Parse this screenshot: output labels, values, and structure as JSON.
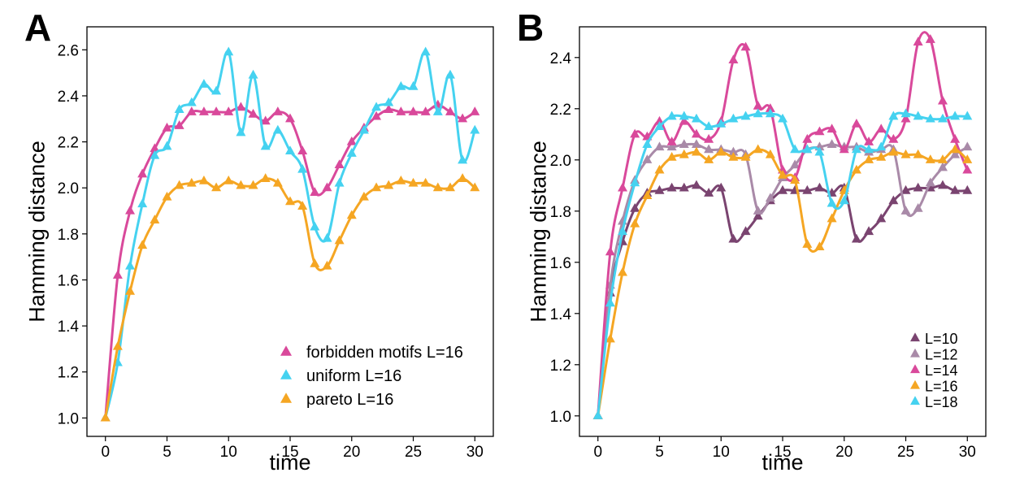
{
  "chart_data": [
    {
      "panel": "A",
      "type": "line",
      "title": "",
      "xlabel": "time",
      "ylabel": "Hamming distance",
      "xlim": [
        -1.5,
        31.5
      ],
      "ylim": [
        0.92,
        2.7
      ],
      "xticks": [
        0,
        5,
        10,
        15,
        20,
        25,
        30
      ],
      "yticks": [
        1.0,
        1.2,
        1.4,
        1.6,
        1.8,
        2.0,
        2.2,
        2.4,
        2.6
      ],
      "ytick_labels": [
        "1.0",
        "1.2",
        "1.4",
        "1.6",
        "1.8",
        "2.0",
        "2.2",
        "2.4",
        "2.6"
      ],
      "legend_position": "bottom-right",
      "series": [
        {
          "name": "forbidden motifs L=16",
          "color": "#d9499b",
          "x": [
            0,
            1,
            2,
            3,
            4,
            5,
            6,
            7,
            8,
            9,
            10,
            11,
            12,
            13,
            14,
            15,
            16,
            17,
            18,
            19,
            20,
            21,
            22,
            23,
            24,
            25,
            26,
            27,
            28,
            29,
            30
          ],
          "y": [
            1.0,
            1.62,
            1.9,
            2.06,
            2.17,
            2.26,
            2.27,
            2.33,
            2.33,
            2.33,
            2.33,
            2.35,
            2.32,
            2.29,
            2.33,
            2.3,
            2.16,
            1.98,
            2.0,
            2.1,
            2.2,
            2.26,
            2.31,
            2.34,
            2.33,
            2.33,
            2.33,
            2.36,
            2.33,
            2.3,
            2.33
          ]
        },
        {
          "name": "uniform L=16",
          "color": "#45d2f0",
          "x": [
            0,
            1,
            2,
            3,
            4,
            5,
            6,
            7,
            8,
            9,
            10,
            11,
            12,
            13,
            14,
            15,
            16,
            17,
            18,
            19,
            20,
            21,
            22,
            23,
            24,
            25,
            26,
            27,
            28,
            29,
            30
          ],
          "y": [
            1.0,
            1.24,
            1.66,
            1.93,
            2.14,
            2.18,
            2.34,
            2.37,
            2.45,
            2.42,
            2.59,
            2.24,
            2.49,
            2.18,
            2.25,
            2.16,
            2.08,
            1.83,
            1.78,
            2.02,
            2.15,
            2.25,
            2.35,
            2.37,
            2.44,
            2.44,
            2.59,
            2.33,
            2.49,
            2.12,
            2.25
          ]
        },
        {
          "name": "pareto L=16",
          "color": "#f5a623",
          "x": [
            0,
            1,
            2,
            3,
            4,
            5,
            6,
            7,
            8,
            9,
            10,
            11,
            12,
            13,
            14,
            15,
            16,
            17,
            18,
            19,
            20,
            21,
            22,
            23,
            24,
            25,
            26,
            27,
            28,
            29,
            30
          ],
          "y": [
            1.0,
            1.31,
            1.55,
            1.75,
            1.86,
            1.96,
            2.01,
            2.02,
            2.03,
            2.0,
            2.03,
            2.01,
            2.01,
            2.04,
            2.02,
            1.94,
            1.92,
            1.67,
            1.66,
            1.77,
            1.88,
            1.96,
            2.0,
            2.01,
            2.03,
            2.02,
            2.02,
            2.0,
            2.0,
            2.04,
            2.0
          ]
        }
      ]
    },
    {
      "panel": "B",
      "type": "line",
      "title": "",
      "xlabel": "time",
      "ylabel": "Hamming distance",
      "xlim": [
        -1.5,
        31.5
      ],
      "ylim": [
        0.92,
        2.52
      ],
      "xticks": [
        0,
        5,
        10,
        15,
        20,
        25,
        30
      ],
      "yticks": [
        1.0,
        1.2,
        1.4,
        1.6,
        1.8,
        2.0,
        2.2,
        2.4
      ],
      "ytick_labels": [
        "1.0",
        "1.2",
        "1.4",
        "1.6",
        "1.8",
        "2.0",
        "2.2",
        "2.4"
      ],
      "legend_position": "bottom-right",
      "series": [
        {
          "name": "L=10",
          "color": "#7a4470",
          "x": [
            0,
            1,
            2,
            3,
            4,
            5,
            6,
            7,
            8,
            9,
            10,
            11,
            12,
            13,
            14,
            15,
            16,
            17,
            18,
            19,
            20,
            21,
            22,
            23,
            24,
            25,
            26,
            27,
            28,
            29,
            30
          ],
          "y": [
            1.0,
            1.48,
            1.68,
            1.81,
            1.87,
            1.88,
            1.89,
            1.89,
            1.9,
            1.87,
            1.89,
            1.69,
            1.72,
            1.78,
            1.84,
            1.88,
            1.88,
            1.88,
            1.89,
            1.87,
            1.89,
            1.69,
            1.72,
            1.77,
            1.84,
            1.88,
            1.89,
            1.89,
            1.9,
            1.88,
            1.88
          ]
        },
        {
          "name": "L=12",
          "color": "#a98aa8",
          "x": [
            0,
            1,
            2,
            3,
            4,
            5,
            6,
            7,
            8,
            9,
            10,
            11,
            12,
            13,
            14,
            15,
            16,
            17,
            18,
            19,
            20,
            21,
            22,
            23,
            24,
            25,
            26,
            27,
            28,
            29,
            30
          ],
          "y": [
            1.0,
            1.51,
            1.76,
            1.92,
            2.0,
            2.05,
            2.05,
            2.06,
            2.06,
            2.04,
            2.04,
            2.03,
            2.02,
            1.8,
            1.85,
            1.93,
            1.98,
            2.04,
            2.05,
            2.06,
            2.05,
            2.05,
            2.03,
            2.04,
            2.04,
            1.8,
            1.81,
            1.91,
            1.97,
            2.02,
            2.05
          ]
        },
        {
          "name": "L=14",
          "color": "#d9499b",
          "x": [
            0,
            1,
            2,
            3,
            4,
            5,
            6,
            7,
            8,
            9,
            10,
            11,
            12,
            13,
            14,
            15,
            16,
            17,
            18,
            19,
            20,
            21,
            22,
            23,
            24,
            25,
            26,
            27,
            28,
            29,
            30
          ],
          "y": [
            1.0,
            1.64,
            1.89,
            2.1,
            2.09,
            2.15,
            2.07,
            2.15,
            2.1,
            2.08,
            2.15,
            2.39,
            2.44,
            2.21,
            2.2,
            1.96,
            1.93,
            2.08,
            2.11,
            2.12,
            2.04,
            2.14,
            2.07,
            2.12,
            2.08,
            2.16,
            2.46,
            2.47,
            2.23,
            2.08,
            1.96
          ]
        },
        {
          "name": "L=16",
          "color": "#f5a623",
          "x": [
            0,
            1,
            2,
            3,
            4,
            5,
            6,
            7,
            8,
            9,
            10,
            11,
            12,
            13,
            14,
            15,
            16,
            17,
            18,
            19,
            20,
            21,
            22,
            23,
            24,
            25,
            26,
            27,
            28,
            29,
            30
          ],
          "y": [
            1.0,
            1.3,
            1.56,
            1.75,
            1.86,
            1.96,
            2.01,
            2.02,
            2.03,
            2.0,
            2.03,
            2.01,
            2.01,
            2.04,
            2.02,
            1.94,
            1.92,
            1.67,
            1.66,
            1.77,
            1.88,
            1.96,
            2.0,
            2.01,
            2.03,
            2.02,
            2.02,
            2.0,
            2.0,
            2.04,
            2.0
          ]
        },
        {
          "name": "L=18",
          "color": "#45d2f0",
          "x": [
            0,
            1,
            2,
            3,
            4,
            5,
            6,
            7,
            8,
            9,
            10,
            11,
            12,
            13,
            14,
            15,
            16,
            17,
            18,
            19,
            20,
            21,
            22,
            23,
            24,
            25,
            26,
            27,
            28,
            29,
            30
          ],
          "y": [
            1.0,
            1.44,
            1.72,
            1.91,
            2.06,
            2.13,
            2.17,
            2.17,
            2.16,
            2.13,
            2.14,
            2.16,
            2.17,
            2.18,
            2.18,
            2.16,
            2.04,
            2.04,
            2.03,
            1.83,
            1.84,
            2.04,
            2.04,
            2.05,
            2.17,
            2.18,
            2.17,
            2.16,
            2.16,
            2.17,
            2.17
          ]
        }
      ]
    }
  ]
}
